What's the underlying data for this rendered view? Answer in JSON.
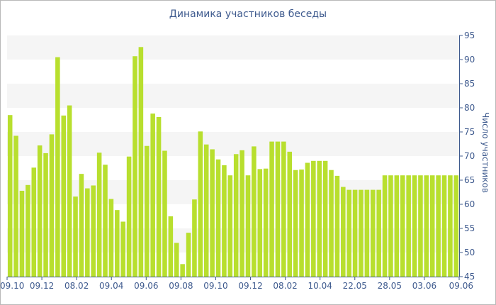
{
  "chart_data": {
    "type": "bar",
    "title": "Динамика участников беседы",
    "ylabel": "Число участников",
    "ylim": [
      45,
      95
    ],
    "yticks": [
      45,
      50,
      55,
      60,
      65,
      70,
      75,
      80,
      85,
      90,
      95
    ],
    "y_axis_side": "right",
    "grid": "alternating horizontal bands",
    "x_tick_labels": [
      "09.10",
      "09.12",
      "08.02",
      "09.04",
      "09.06",
      "09.08",
      "09.10",
      "09.12",
      "08.02",
      "10.04",
      "22.05",
      "28.05",
      "03.06",
      "09.06"
    ],
    "series": [
      {
        "values": [
          78.5,
          74.2,
          62.8,
          64,
          67.6,
          72.2,
          70.6,
          74.5,
          90.5,
          78.4,
          80.5,
          61.6,
          66.3,
          63.3,
          63.9,
          70.7,
          68.2,
          61.1,
          58.8,
          56.4,
          69.9,
          90.7,
          92.6,
          72.1,
          78.8,
          78.1,
          71.1,
          57.5,
          52,
          47.6,
          54.1,
          61,
          75.1,
          72.4,
          71.4,
          69.3,
          68.1,
          66,
          70.4,
          71.2,
          66,
          72,
          67.3,
          67.4,
          73,
          73,
          73,
          70.9,
          67.1,
          67.2,
          68.6,
          69,
          69,
          69,
          67.1,
          65.9,
          63.6,
          63,
          63,
          63,
          63,
          63,
          63,
          66,
          66,
          66,
          66,
          66,
          66,
          66,
          66,
          66,
          66,
          66,
          66,
          66
        ]
      }
    ],
    "colors": {
      "bar": "#b8df2e",
      "band": "#f5f5f5",
      "axis": "#3e5a8e"
    }
  }
}
